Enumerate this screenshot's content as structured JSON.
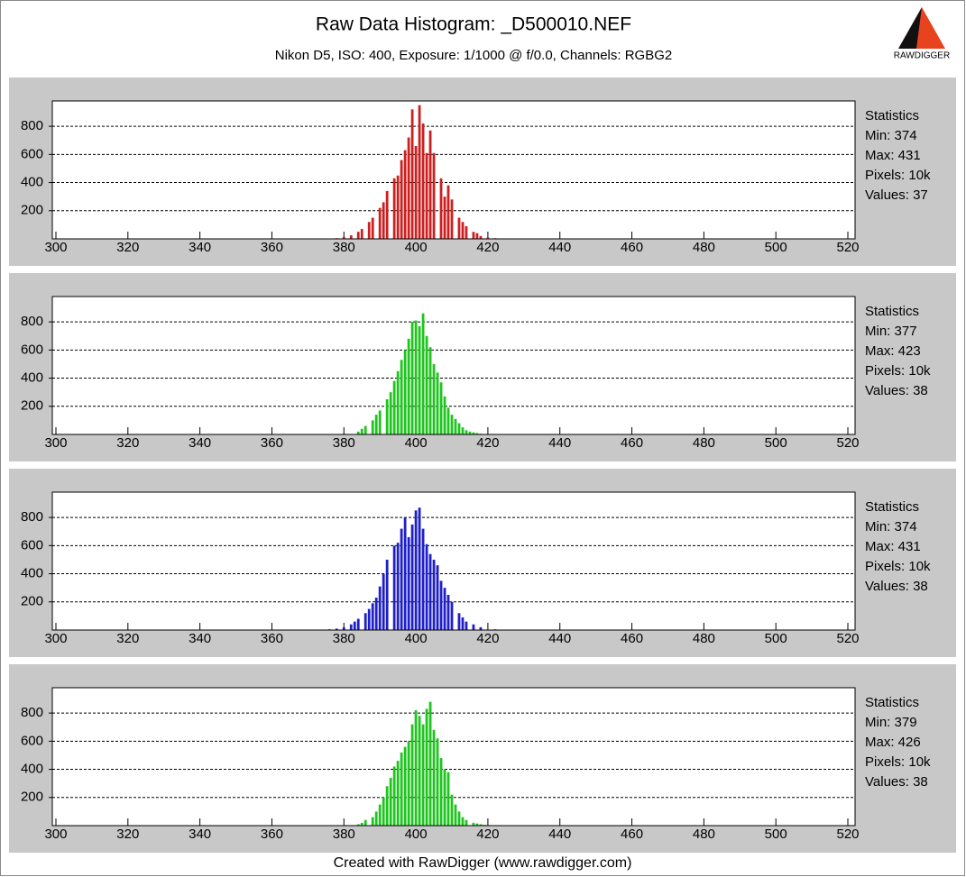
{
  "page": {
    "title": "Raw Data Histogram: _D500010.NEF",
    "subtitle": "Nikon D5, ISO: 400, Exposure: 1/1000 @ f/0.0, Channels: RGBG2",
    "footer": "Created with RawDigger (www.rawdigger.com)",
    "logo_text": "RAWDIGGER"
  },
  "chart_data": [
    {
      "type": "bar",
      "color": "#cc1f1f",
      "grid": true,
      "xlim": [
        299,
        522
      ],
      "ylim": [
        0,
        980
      ],
      "xticks": [
        300,
        320,
        340,
        360,
        380,
        400,
        420,
        440,
        460,
        480,
        500,
        520
      ],
      "yticks": [
        200,
        400,
        600,
        800
      ],
      "x": [
        374,
        378,
        380,
        382,
        384,
        385,
        387,
        388,
        390,
        391,
        392,
        394,
        395,
        396,
        397,
        398,
        399,
        400,
        401,
        402,
        403,
        404,
        405,
        407,
        408,
        409,
        410,
        412,
        413,
        414,
        416,
        417,
        418,
        420,
        422,
        424,
        431
      ],
      "values": [
        2,
        5,
        15,
        25,
        50,
        70,
        120,
        150,
        220,
        260,
        340,
        430,
        450,
        560,
        630,
        720,
        920,
        660,
        950,
        820,
        610,
        770,
        610,
        430,
        300,
        380,
        280,
        150,
        120,
        90,
        50,
        40,
        20,
        10,
        5,
        3,
        1
      ],
      "stats": [
        "Statistics",
        "Min: 374",
        "Max: 431",
        "Pixels: 10k",
        "Values: 37"
      ]
    },
    {
      "type": "bar",
      "color": "#1fc41f",
      "grid": true,
      "xlim": [
        299,
        522
      ],
      "ylim": [
        0,
        980
      ],
      "xticks": [
        300,
        320,
        340,
        360,
        380,
        400,
        420,
        440,
        460,
        480,
        500,
        520
      ],
      "yticks": [
        200,
        400,
        600,
        800
      ],
      "x": [
        377,
        380,
        384,
        385,
        386,
        388,
        389,
        390,
        392,
        393,
        394,
        395,
        396,
        397,
        398,
        399,
        400,
        401,
        402,
        403,
        404,
        405,
        406,
        407,
        408,
        409,
        410,
        411,
        412,
        413,
        414,
        415,
        416,
        417,
        418,
        420,
        422,
        423
      ],
      "values": [
        2,
        5,
        20,
        40,
        60,
        100,
        140,
        170,
        250,
        300,
        380,
        450,
        530,
        600,
        680,
        800,
        810,
        770,
        860,
        700,
        620,
        500,
        440,
        370,
        270,
        190,
        140,
        110,
        80,
        50,
        30,
        20,
        15,
        10,
        5,
        3,
        2,
        1
      ],
      "stats": [
        "Statistics",
        "Min: 377",
        "Max: 423",
        "Pixels: 10k",
        "Values: 38"
      ]
    },
    {
      "type": "bar",
      "color": "#1f1fc8",
      "grid": true,
      "xlim": [
        299,
        522
      ],
      "ylim": [
        0,
        980
      ],
      "xticks": [
        300,
        320,
        340,
        360,
        380,
        400,
        420,
        440,
        460,
        480,
        500,
        520
      ],
      "yticks": [
        200,
        400,
        600,
        800
      ],
      "x": [
        374,
        376,
        378,
        380,
        382,
        383,
        384,
        386,
        387,
        388,
        389,
        390,
        391,
        392,
        394,
        395,
        396,
        397,
        398,
        399,
        400,
        401,
        402,
        403,
        404,
        405,
        406,
        407,
        408,
        409,
        410,
        412,
        413,
        414,
        416,
        418,
        422,
        431
      ],
      "values": [
        2,
        5,
        10,
        20,
        40,
        60,
        80,
        120,
        150,
        190,
        230,
        310,
        400,
        500,
        600,
        620,
        720,
        800,
        660,
        750,
        850,
        870,
        720,
        610,
        540,
        500,
        460,
        350,
        300,
        250,
        200,
        120,
        90,
        60,
        40,
        20,
        5,
        1
      ],
      "stats": [
        "Statistics",
        "Min: 374",
        "Max: 431",
        "Pixels: 10k",
        "Values: 38"
      ]
    },
    {
      "type": "bar",
      "color": "#1fc41f",
      "grid": true,
      "xlim": [
        299,
        522
      ],
      "ylim": [
        0,
        980
      ],
      "xticks": [
        300,
        320,
        340,
        360,
        380,
        400,
        420,
        440,
        460,
        480,
        500,
        520
      ],
      "yticks": [
        200,
        400,
        600,
        800
      ],
      "x": [
        379,
        384,
        385,
        386,
        388,
        389,
        390,
        391,
        392,
        393,
        394,
        395,
        396,
        397,
        398,
        399,
        400,
        401,
        402,
        403,
        404,
        405,
        406,
        407,
        408,
        409,
        410,
        411,
        412,
        413,
        414,
        416,
        417,
        418,
        419,
        420,
        422,
        426
      ],
      "values": [
        2,
        10,
        20,
        40,
        60,
        100,
        150,
        200,
        280,
        340,
        420,
        460,
        520,
        560,
        600,
        720,
        820,
        780,
        720,
        830,
        880,
        680,
        620,
        480,
        400,
        380,
        220,
        150,
        100,
        60,
        40,
        20,
        15,
        10,
        6,
        4,
        2,
        1
      ],
      "stats": [
        "Statistics",
        "Min: 379",
        "Max: 426",
        "Pixels: 10k",
        "Values: 38"
      ]
    }
  ]
}
